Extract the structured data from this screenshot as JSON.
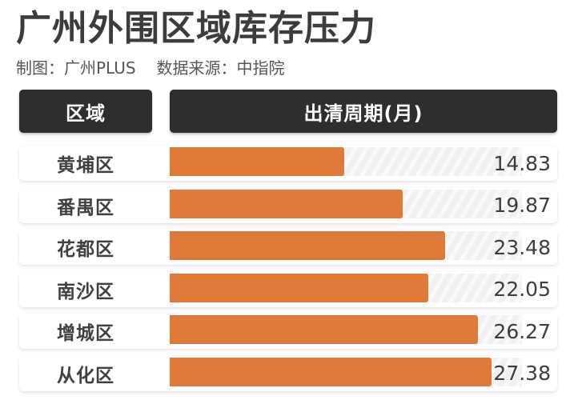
{
  "header": {
    "title": "广州外围区域库存压力",
    "credit": "制图：广州PLUS",
    "source": "数据来源：中指院"
  },
  "table": {
    "col_region": "区域",
    "col_period": "出清周期(月)",
    "track_max": 30,
    "bar_color": "#e07a38",
    "header_bg": "#2e2e2e"
  },
  "rows": [
    {
      "region": "黄埔区",
      "value": "14.83"
    },
    {
      "region": "番禺区",
      "value": "19.87"
    },
    {
      "region": "花都区",
      "value": "23.48"
    },
    {
      "region": "南沙区",
      "value": "22.05"
    },
    {
      "region": "增城区",
      "value": "26.27"
    },
    {
      "region": "从化区",
      "value": "27.38"
    }
  ],
  "chart_data": {
    "type": "bar",
    "orientation": "horizontal",
    "title": "广州外围区域库存压力",
    "subtitle": "制图：广州PLUS  数据来源：中指院",
    "xlabel": "出清周期(月)",
    "ylabel": "区域",
    "categories": [
      "黄埔区",
      "番禺区",
      "花都区",
      "南沙区",
      "增城区",
      "从化区"
    ],
    "values": [
      14.83,
      19.87,
      23.48,
      22.05,
      26.27,
      27.38
    ],
    "xlim": [
      0,
      30
    ],
    "grid": false,
    "legend": null,
    "data_labels": true
  }
}
